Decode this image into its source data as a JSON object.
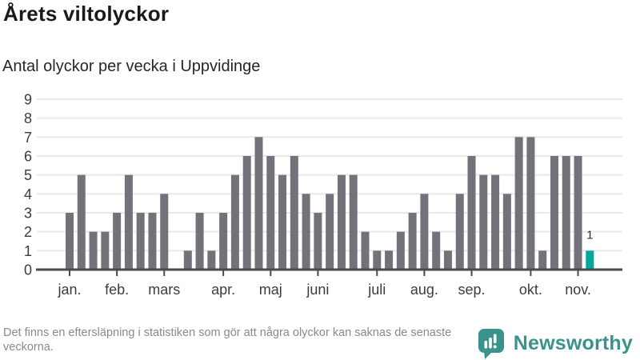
{
  "header": {
    "title": "Årets viltolyckor",
    "subtitle": "Antal olyckor per vecka i Uppvidinge"
  },
  "chart_data": {
    "type": "bar",
    "title": "Årets viltolyckor",
    "subtitle": "Antal olyckor per vecka i Uppvidinge",
    "x_unit": "vecka",
    "ylabel": "",
    "xlabel": "",
    "ylim": [
      0,
      9
    ],
    "yticks": [
      0,
      1,
      2,
      3,
      4,
      5,
      6,
      7,
      8,
      9
    ],
    "grid": true,
    "legend": "none",
    "values": [
      3,
      5,
      2,
      2,
      3,
      5,
      3,
      3,
      4,
      0,
      1,
      3,
      1,
      3,
      5,
      6,
      7,
      6,
      5,
      6,
      4,
      3,
      4,
      5,
      5,
      2,
      1,
      1,
      2,
      3,
      4,
      2,
      1,
      4,
      6,
      5,
      5,
      4,
      7,
      7,
      1,
      6,
      6,
      6,
      1
    ],
    "months": [
      {
        "label": "jan.",
        "week": 0
      },
      {
        "label": "feb.",
        "week": 4
      },
      {
        "label": "mars",
        "week": 8
      },
      {
        "label": "apr.",
        "week": 13
      },
      {
        "label": "maj",
        "week": 17
      },
      {
        "label": "juni",
        "week": 21
      },
      {
        "label": "juli",
        "week": 26
      },
      {
        "label": "aug.",
        "week": 30
      },
      {
        "label": "sep.",
        "week": 34
      },
      {
        "label": "okt.",
        "week": 39
      },
      {
        "label": "nov.",
        "week": 43
      }
    ],
    "highlight": {
      "index": 44,
      "label": "1",
      "color": "#00A79B"
    },
    "colors": {
      "bar": "#75717A",
      "axis": "#4A4A4F",
      "grid": "#E9E9E9",
      "tick_label": "#3C3C3C"
    }
  },
  "footer": {
    "note": "Det finns en eftersläpning i statistiken som gör att några olyckor kan saknas de senaste veckorna."
  },
  "branding": {
    "name": "Newsworthy",
    "color": "#3A938B"
  }
}
